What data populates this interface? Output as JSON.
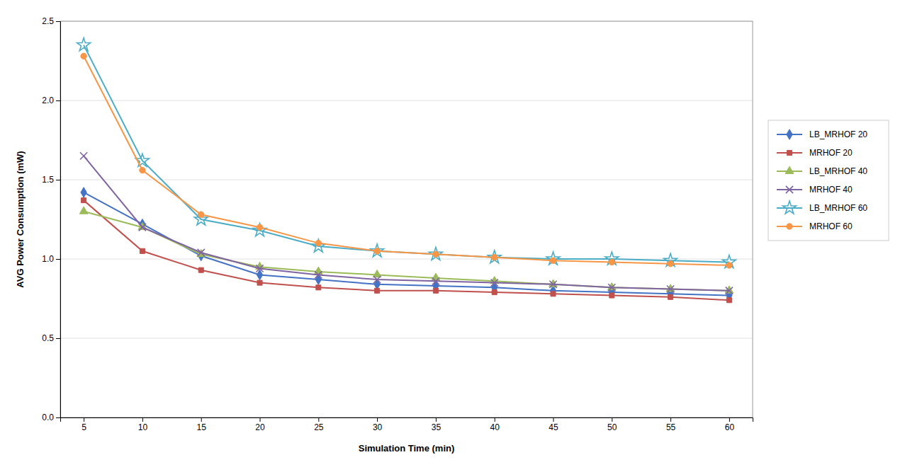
{
  "chart_data": {
    "type": "line",
    "x": [
      5,
      10,
      15,
      20,
      25,
      30,
      35,
      40,
      45,
      50,
      55,
      60
    ],
    "series": [
      {
        "name": "LB_MRHOF 20",
        "color": "#4472C4",
        "marker": "diamond",
        "values": [
          1.42,
          1.22,
          1.02,
          0.9,
          0.87,
          0.84,
          0.83,
          0.82,
          0.8,
          0.79,
          0.78,
          0.77
        ]
      },
      {
        "name": "MRHOF 20",
        "color": "#C0504D",
        "marker": "square",
        "values": [
          1.37,
          1.05,
          0.93,
          0.85,
          0.82,
          0.8,
          0.8,
          0.79,
          0.78,
          0.77,
          0.76,
          0.74
        ]
      },
      {
        "name": "LB_MRHOF 40",
        "color": "#9BBB59",
        "marker": "triangle",
        "values": [
          1.3,
          1.2,
          1.03,
          0.95,
          0.92,
          0.9,
          0.88,
          0.86,
          0.84,
          0.82,
          0.81,
          0.8
        ]
      },
      {
        "name": "MRHOF 40",
        "color": "#8064A2",
        "marker": "x",
        "values": [
          1.65,
          1.2,
          1.04,
          0.94,
          0.9,
          0.87,
          0.86,
          0.85,
          0.84,
          0.82,
          0.81,
          0.8
        ]
      },
      {
        "name": "LB_MRHOF 60",
        "color": "#4BACC6",
        "marker": "star",
        "values": [
          2.35,
          1.62,
          1.25,
          1.18,
          1.08,
          1.05,
          1.03,
          1.01,
          1.0,
          1.0,
          0.99,
          0.98
        ]
      },
      {
        "name": "MRHOF 60",
        "color": "#F79646",
        "marker": "circle",
        "values": [
          2.28,
          1.56,
          1.28,
          1.2,
          1.1,
          1.05,
          1.03,
          1.01,
          0.99,
          0.98,
          0.97,
          0.96
        ]
      }
    ],
    "xlabel": "Simulation Time (min)",
    "ylabel": "AVG Power Consumption (mW)",
    "xlim": [
      3,
      62
    ],
    "ylim": [
      0,
      2.5
    ],
    "xticks": [
      5,
      10,
      15,
      20,
      25,
      30,
      35,
      40,
      45,
      50,
      55,
      60
    ],
    "yticks": [
      {
        "value": 0,
        "label": "0.0"
      },
      0.5,
      {
        "value": 1.0,
        "label": "1.0"
      },
      1.5,
      {
        "value": 2.0,
        "label": "2.0"
      },
      2.5
    ],
    "grid": "y",
    "legend": "right"
  }
}
